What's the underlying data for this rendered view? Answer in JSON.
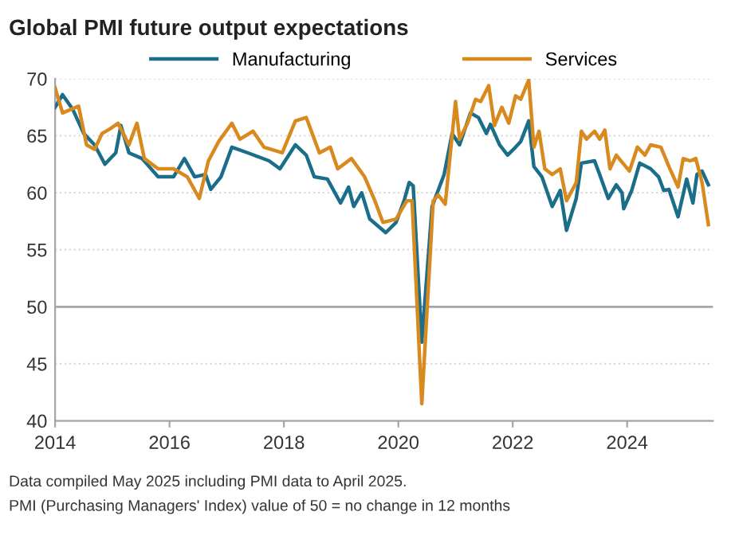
{
  "chart_data": {
    "type": "line",
    "title": "Global PMI future output expectations",
    "series": [
      {
        "name": "Manufacturing",
        "color": "#1a6e8a",
        "x": [
          2014.0,
          2014.13,
          2014.31,
          2014.5,
          2014.69,
          2014.87,
          2015.06,
          2015.15,
          2015.29,
          2015.52,
          2015.8,
          2016.07,
          2016.26,
          2016.44,
          2016.63,
          2016.72,
          2016.9,
          2017.09,
          2017.37,
          2017.74,
          2017.93,
          2018.2,
          2018.39,
          2018.53,
          2018.76,
          2018.99,
          2019.13,
          2019.22,
          2019.36,
          2019.5,
          2019.78,
          2019.96,
          2020.1,
          2020.19,
          2020.26,
          2020.41,
          2020.59,
          2020.8,
          2020.94,
          2021.07,
          2021.26,
          2021.4,
          2021.54,
          2021.61,
          2021.77,
          2021.91,
          2022.05,
          2022.14,
          2022.28,
          2022.37,
          2022.51,
          2022.69,
          2022.83,
          2022.94,
          2023.11,
          2023.2,
          2023.43,
          2023.52,
          2023.67,
          2023.81,
          2023.91,
          2023.94,
          2024.08,
          2024.22,
          2024.41,
          2024.55,
          2024.64,
          2024.73,
          2024.89,
          2025.04,
          2025.15,
          2025.22,
          2025.31,
          2025.42
        ],
        "values": [
          67.5,
          68.6,
          67.3,
          65.2,
          64.2,
          62.5,
          63.5,
          65.9,
          63.5,
          63,
          61.4,
          61.4,
          63,
          61.4,
          61.6,
          60.3,
          61.4,
          64,
          63.5,
          62.8,
          62.1,
          64.2,
          63.3,
          61.4,
          61.2,
          59.1,
          60.5,
          58.8,
          60.0,
          57.7,
          56.5,
          57.4,
          59.3,
          60.9,
          60.6,
          46.9,
          58.8,
          61.6,
          65.2,
          64.2,
          67,
          66.6,
          65.2,
          66,
          64.2,
          63.3,
          64,
          64.5,
          66.3,
          62.3,
          61.4,
          58.8,
          60.2,
          56.7,
          59.5,
          62.6,
          62.8,
          61.6,
          59.5,
          60.7,
          60.0,
          58.6,
          60.2,
          62.6,
          62.1,
          61.4,
          60.2,
          60.3,
          57.9,
          61.2,
          59.1,
          61.6,
          61.9,
          60.7
        ]
      },
      {
        "name": "Services",
        "color": "#d98a1e",
        "x": [
          2014.0,
          2014.13,
          2014.41,
          2014.55,
          2014.69,
          2014.82,
          2014.96,
          2015.1,
          2015.29,
          2015.43,
          2015.56,
          2015.8,
          2016.07,
          2016.31,
          2016.52,
          2016.68,
          2016.86,
          2017.09,
          2017.23,
          2017.46,
          2017.65,
          2017.97,
          2018.2,
          2018.39,
          2018.62,
          2018.81,
          2018.94,
          2019.18,
          2019.41,
          2019.59,
          2019.73,
          2019.96,
          2020.15,
          2020.24,
          2020.41,
          2020.61,
          2020.7,
          2020.82,
          2021.0,
          2021.07,
          2021.21,
          2021.35,
          2021.44,
          2021.58,
          2021.68,
          2021.81,
          2021.93,
          2022.05,
          2022.14,
          2022.28,
          2022.37,
          2022.46,
          2022.56,
          2022.69,
          2022.83,
          2022.94,
          2023.11,
          2023.2,
          2023.29,
          2023.43,
          2023.52,
          2023.61,
          2023.7,
          2023.81,
          2024.04,
          2024.18,
          2024.31,
          2024.41,
          2024.59,
          2024.73,
          2024.89,
          2024.98,
          2025.1,
          2025.2,
          2025.31,
          2025.42
        ],
        "values": [
          69.2,
          67,
          67.6,
          64.2,
          63.8,
          65.2,
          65.6,
          66.1,
          64.2,
          66.1,
          63,
          62.1,
          62.1,
          61.4,
          59.5,
          62.8,
          64.5,
          66.1,
          64.7,
          65.4,
          64,
          63.5,
          66.3,
          66.6,
          63.5,
          64,
          62.1,
          63,
          61.4,
          59.3,
          57.4,
          57.7,
          59.3,
          59.3,
          41.5,
          59.3,
          59.8,
          59,
          68,
          64.7,
          66.1,
          68.2,
          68,
          69.4,
          65.9,
          67.5,
          66.1,
          68.5,
          68.2,
          69.9,
          64,
          65.4,
          62.1,
          61.6,
          62.1,
          59.3,
          60.9,
          65.4,
          64.7,
          65.4,
          64.7,
          65.5,
          62.1,
          63.3,
          61.9,
          64,
          63.3,
          64.2,
          64,
          62.3,
          60.5,
          63,
          62.8,
          63,
          60.9,
          57.2
        ]
      }
    ],
    "xlim": [
      2014,
      2025.5
    ],
    "xticks": [
      2014,
      2016,
      2018,
      2020,
      2022,
      2024
    ],
    "ylim": [
      40,
      70
    ],
    "yticks": [
      40,
      45,
      50,
      55,
      60,
      65,
      70
    ],
    "ref_lines": [
      {
        "axis": "y",
        "value": 50,
        "color": "#a6a6a6",
        "line_style": "solid"
      }
    ],
    "grid": "y",
    "legend": "top",
    "marker": "none",
    "line_style": "solid",
    "annotations": [
      "Data compiled May 2025 including PMI data to April 2025.",
      "PMI (Purchasing Managers' Index) value of 50 = no change in 12 months"
    ]
  }
}
